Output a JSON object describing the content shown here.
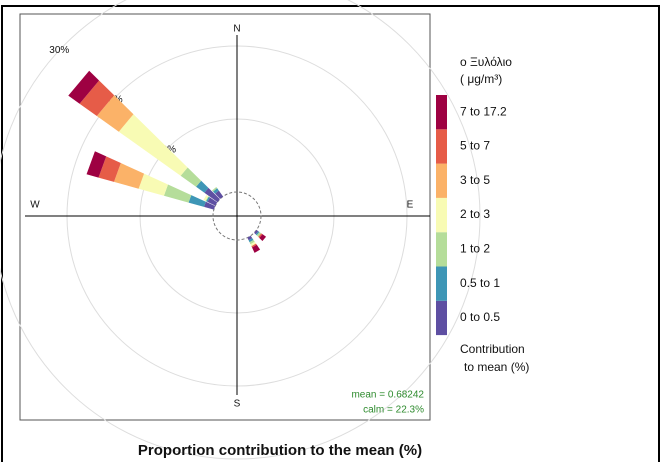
{
  "chart_data": {
    "type": "pollution-rose",
    "title": "Proportion contribution to the mean (%)",
    "legend_title": [
      "o Ξυλόλιο",
      "(        μg/m³)"
    ],
    "legend_note": [
      "Contribution",
      "to mean (%)"
    ],
    "compass": [
      "N",
      "E",
      "S",
      "W"
    ],
    "stats": [
      "mean = 0.68242",
      "calm = 22.3%"
    ],
    "directions": [
      130,
      150,
      290,
      300,
      310,
      320
    ],
    "rlim": [
      0,
      30
    ],
    "rticks": [
      {
        "value": 10,
        "label": "10%"
      },
      {
        "value": 20,
        "label": "20%"
      },
      {
        "value": 30,
        "label": "30%"
      }
    ],
    "series": [
      {
        "name": "0 to 0.5",
        "color": "#5e4fa2",
        "values": [
          0.3,
          0.4,
          1.4,
          1.2,
          2.2,
          1.0
        ]
      },
      {
        "name": "0.5 to 1",
        "color": "#3e96b6",
        "values": [
          0.2,
          0.3,
          2.2,
          0.2,
          1.4,
          0.4
        ]
      },
      {
        "name": "1 to 2",
        "color": "#b5dd9a",
        "values": [
          0.3,
          0.3,
          3.5,
          0.1,
          2.6,
          0.2
        ]
      },
      {
        "name": "2 to 3",
        "color": "#f8fbb4",
        "values": [
          0,
          0.3,
          3.6,
          0.3,
          10.4,
          0
        ]
      },
      {
        "name": "3 to 5",
        "color": "#fbb268",
        "values": [
          0,
          0,
          3.5,
          0,
          3.7,
          0
        ]
      },
      {
        "name": "5 to 7",
        "color": "#e65c48",
        "values": [
          0.2,
          0.2,
          2.2,
          0,
          2.9,
          0
        ]
      },
      {
        "name": "7 to 17.2",
        "color": "#9e0142",
        "values": [
          0.6,
          0.8,
          1.7,
          0,
          1.9,
          0
        ]
      }
    ]
  }
}
